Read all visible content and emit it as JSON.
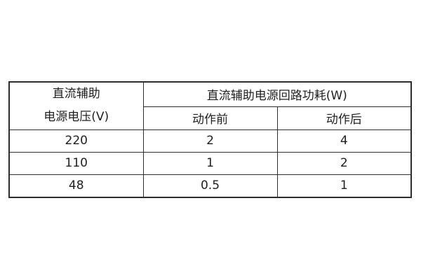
{
  "page": {
    "background": "#ffffff"
  },
  "colors": {
    "border": "#2d2d2d",
    "text": "#1f1f1f"
  },
  "table": {
    "header": {
      "voltage_line1": "直流辅助",
      "voltage_line2": "电源电压(V)",
      "power_group": "直流辅助电源回路功耗(W)",
      "before": "动作前",
      "after": "动作后"
    },
    "rows": [
      {
        "voltage": "220",
        "before": "2",
        "after": "4"
      },
      {
        "voltage": "110",
        "before": "1",
        "after": "2"
      },
      {
        "voltage": "48",
        "before": "0.5",
        "after": "1"
      }
    ]
  }
}
